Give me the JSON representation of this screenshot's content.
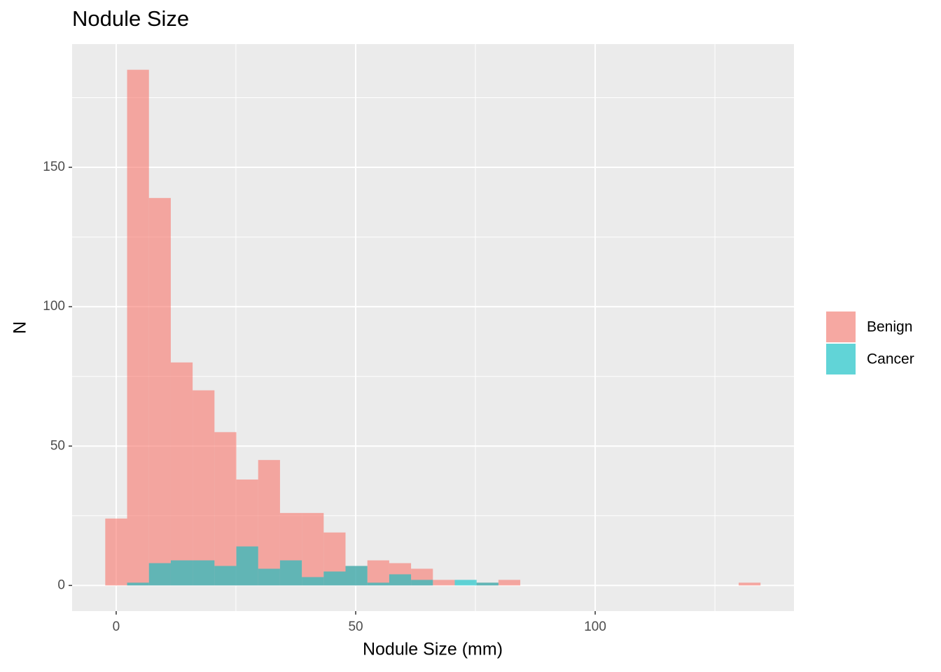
{
  "chart_data": {
    "type": "histogram",
    "title": "Nodule Size",
    "x_label": "Nodule Size (mm)",
    "y_label": "N",
    "bins": [
      -2.28,
      2.28,
      6.84,
      11.4,
      15.96,
      20.52,
      25.08,
      29.64,
      34.2,
      38.76,
      43.32,
      47.88,
      52.44,
      57,
      61.56,
      66.12,
      70.68,
      75.24,
      79.8,
      84.36,
      88.92,
      93.48,
      98.04,
      102.6,
      107.16,
      111.72,
      116.28,
      120.84,
      125.4,
      129.96,
      134.52
    ],
    "series": [
      {
        "name": "Benign",
        "color": "#F8766D",
        "values": [
          24,
          185,
          139,
          80,
          70,
          55,
          38,
          45,
          26,
          26,
          19,
          7,
          9,
          8,
          6,
          2,
          0,
          1,
          2,
          0,
          0,
          0,
          0,
          0,
          0,
          0,
          0,
          0,
          0,
          1
        ]
      },
      {
        "name": "Cancer",
        "color": "#00BFC4",
        "values": [
          0,
          1,
          8,
          9,
          9,
          7,
          14,
          6,
          9,
          3,
          5,
          7,
          1,
          4,
          2,
          0,
          2,
          1,
          0,
          0,
          0,
          0,
          0,
          0,
          0,
          0,
          0,
          0,
          0,
          0
        ]
      }
    ],
    "opacity": 0.6,
    "xlim": [
      -9.2,
      141.5
    ],
    "xticks": [
      0,
      50,
      100
    ],
    "ylim": [
      -9.2,
      194.2
    ],
    "yticks": [
      0,
      50,
      100,
      150
    ],
    "grid": true
  }
}
